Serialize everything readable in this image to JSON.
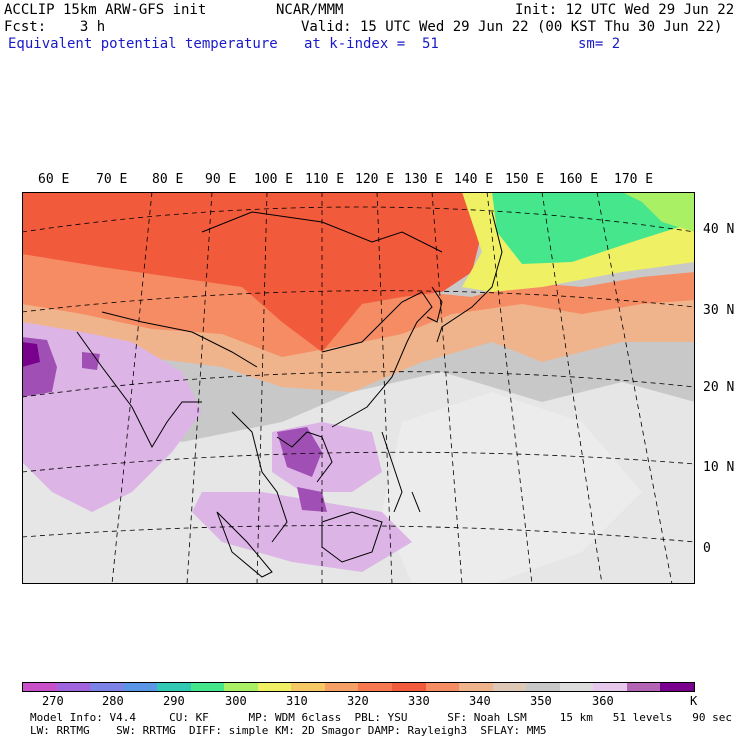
{
  "header": {
    "line1_left": "ACCLIP 15km ARW-GFS init",
    "line1_mid": "NCAR/MMM",
    "line1_right": "Init: 12 UTC Wed 29 Jun 22",
    "line2_left": "Fcst:    3 h",
    "line2_right": "Valid: 15 UTC Wed 29 Jun 22 (00 KST Thu 30 Jun 22)",
    "line3_left": "Equivalent potential temperature",
    "line3_mid": "at k-index =  51",
    "line3_right": "sm= 2"
  },
  "map": {
    "lon_labels": [
      "60 E",
      "70 E",
      "80 E",
      "90 E",
      "100 E",
      "110 E",
      "120 E",
      "130 E",
      "140 E",
      "150 E",
      "160 E",
      "170 E"
    ],
    "lat_labels": [
      "40 N",
      "30 N",
      "20 N",
      "10 N",
      "0"
    ],
    "colors": {
      "land_water_gray": "#c8c8c8",
      "warm_red": "#f25a3c",
      "light_red": "#f58c64",
      "salmon": "#f5b48c",
      "lavender": "#dcb4e6",
      "purple": "#a050b4",
      "dark_purple": "#78008c",
      "green": "#46e68c",
      "yellow": "#f0f064"
    }
  },
  "colorbar": {
    "colors": [
      "#c850c8",
      "#a064dc",
      "#7c82e6",
      "#5a96e6",
      "#32c8b4",
      "#46e68c",
      "#aaf064",
      "#f0f064",
      "#f5c864",
      "#f5a064",
      "#f57850",
      "#f25a3c",
      "#f58c64",
      "#f0b48c",
      "#dcc8b4",
      "#c8c8c8",
      "#dcdcdc",
      "#e6c8ec",
      "#b464b4",
      "#78008c"
    ],
    "tick_labels": [
      "270",
      "280",
      "290",
      "300",
      "310",
      "320",
      "330",
      "340",
      "350",
      "360",
      "K"
    ]
  },
  "footer": {
    "line1": "Model Info: V4.4     CU: KF      MP: WDM 6class  PBL: YSU      SF: Noah LSM     15 km   51 levels   90 sec",
    "line2": "LW: RRTMG    SW: RRTMG  DIFF: simple KM: 2D Smagor DAMP: Rayleigh3  SFLAY: MM5"
  }
}
